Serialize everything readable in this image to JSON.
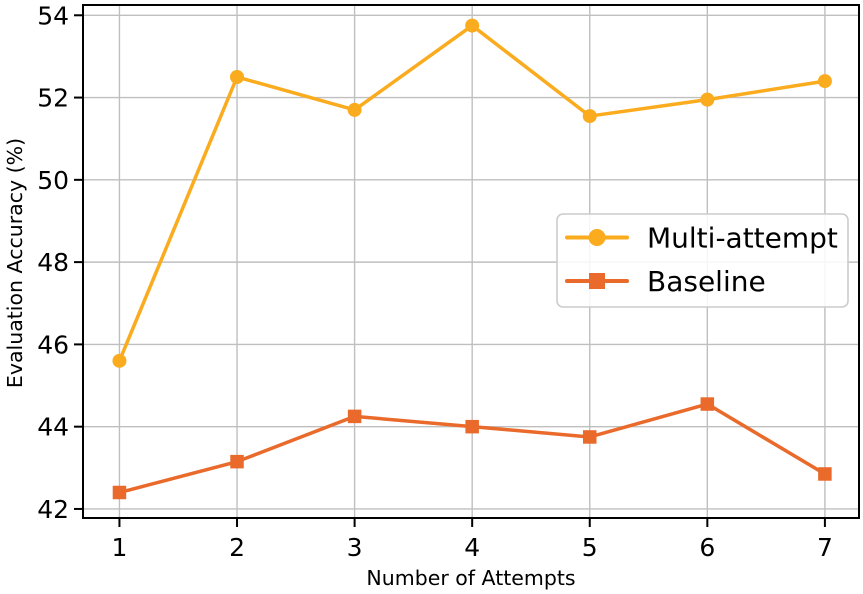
{
  "chart_data": {
    "type": "line",
    "title": "",
    "xlabel": "Number of Attempts",
    "ylabel": "Evaluation Accuracy (%)",
    "x": [
      1,
      2,
      3,
      4,
      5,
      6,
      7
    ],
    "xticks": [
      1,
      2,
      3,
      4,
      5,
      6,
      7
    ],
    "yticks": [
      42,
      44,
      46,
      48,
      50,
      52,
      54
    ],
    "xlim": [
      0.69,
      7.29
    ],
    "ylim": [
      41.78,
      54.25
    ],
    "grid": true,
    "legend_position": "center-right",
    "series": [
      {
        "name": "Multi-attempt",
        "marker": "circle",
        "color": "#FAAB1E",
        "values": [
          45.6,
          52.5,
          51.7,
          53.75,
          51.55,
          51.95,
          52.4
        ]
      },
      {
        "name": "Baseline",
        "marker": "square",
        "color": "#E96A2B",
        "values": [
          42.4,
          43.15,
          44.25,
          44.0,
          43.75,
          44.55,
          42.85
        ]
      }
    ],
    "colors": {
      "grid": "#BFBFBF",
      "axis": "#000000",
      "text": "#000000",
      "legend_border": "#CCCCCC",
      "legend_background": "#FFFFFF"
    }
  }
}
